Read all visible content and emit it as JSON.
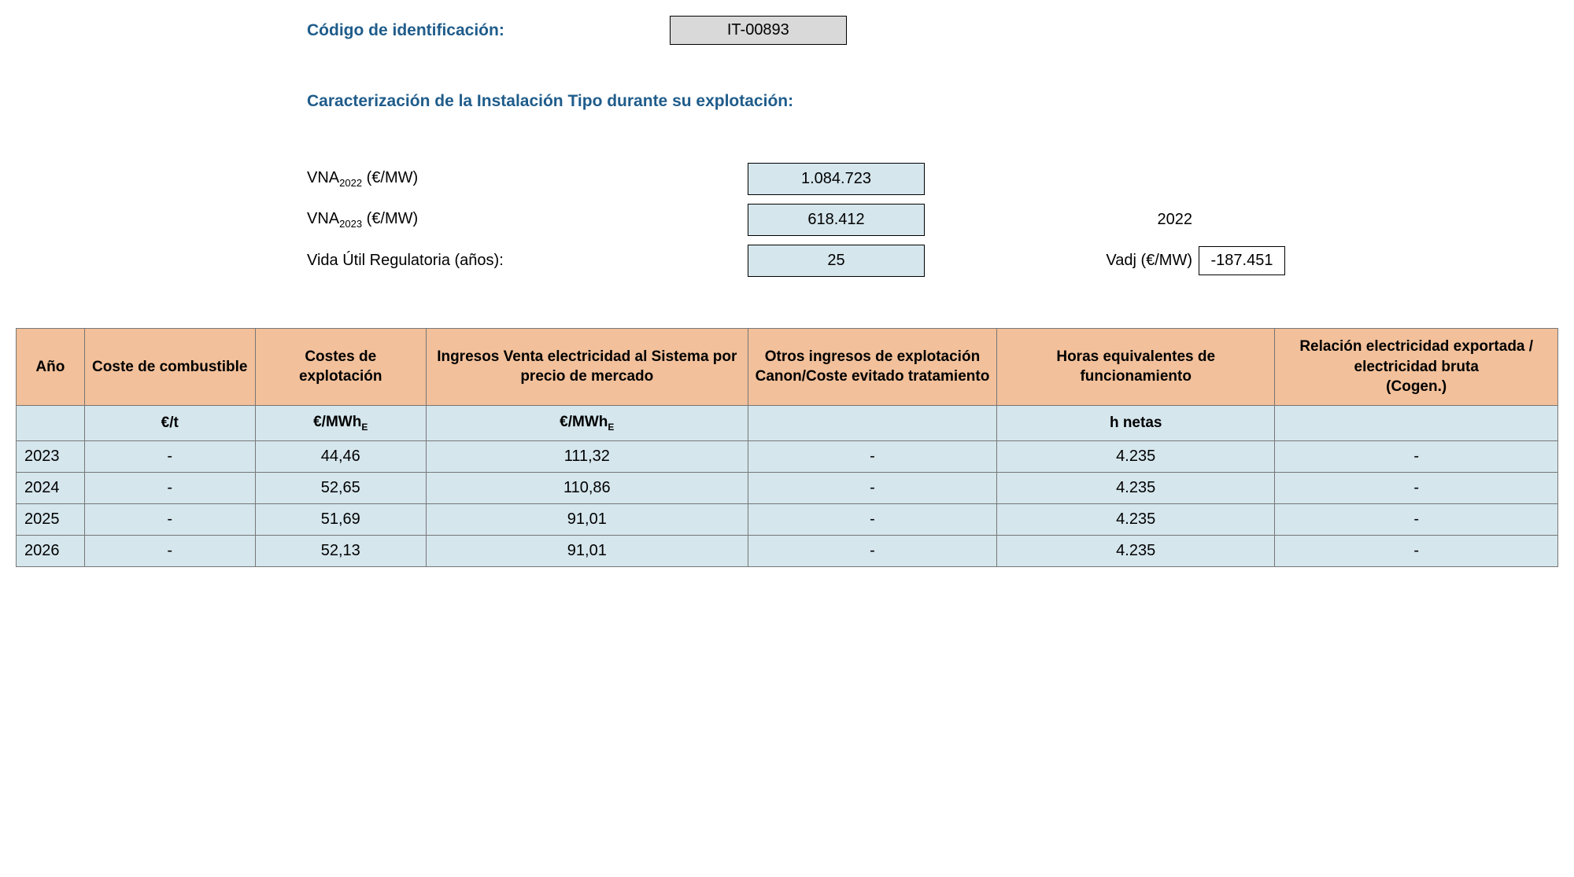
{
  "header": {
    "code_label": "Código de identificación:",
    "code_value": "IT-00893",
    "section_title": "Caracterización de la Instalación Tipo durante su explotación:"
  },
  "params": {
    "vna2022_label_pre": "VNA",
    "vna2022_label_sub": "2022",
    "vna2022_label_post": " (€/MW)",
    "vna2022_value": "1.084.723",
    "vna2023_label_pre": "VNA",
    "vna2023_label_sub": "2023",
    "vna2023_label_post": " (€/MW)",
    "vna2023_value": "618.412",
    "vida_label": "Vida Útil Regulatoria (años):",
    "vida_value": "25",
    "year_side": "2022",
    "vadj_label": "Vadj (€/MW)",
    "vadj_value": "-187.451"
  },
  "table": {
    "headers": {
      "ano": "Año",
      "combustible": "Coste de combustible",
      "explotacion": "Costes de explotación",
      "ingresos": "Ingresos Venta electricidad al Sistema por precio de mercado",
      "otros": "Otros ingresos de explotación Canon/Coste evitado tratamiento",
      "horas": "Horas equivalentes de funcionamiento",
      "relacion": "Relación electricidad exportada / electricidad bruta\n(Cogen.)"
    },
    "units": {
      "ano": "",
      "combustible": "€/t",
      "explotacion_pre": "€/MWh",
      "explotacion_sub": "E",
      "ingresos_pre": "€/MWh",
      "ingresos_sub": "E",
      "otros": "",
      "horas": "h netas",
      "relacion": ""
    },
    "rows": [
      {
        "ano": "2023",
        "combustible": "-",
        "explotacion": "44,46",
        "ingresos": "111,32",
        "otros": "-",
        "horas": "4.235",
        "relacion": "-"
      },
      {
        "ano": "2024",
        "combustible": "-",
        "explotacion": "52,65",
        "ingresos": "110,86",
        "otros": "-",
        "horas": "4.235",
        "relacion": "-"
      },
      {
        "ano": "2025",
        "combustible": "-",
        "explotacion": "51,69",
        "ingresos": "91,01",
        "otros": "-",
        "horas": "4.235",
        "relacion": "-"
      },
      {
        "ano": "2026",
        "combustible": "-",
        "explotacion": "52,13",
        "ingresos": "91,01",
        "otros": "-",
        "horas": "4.235",
        "relacion": "-"
      }
    ]
  },
  "colors": {
    "header_bg": "#f2c09a",
    "cell_bg": "#d5e6ed",
    "code_bg": "#d9d9d9",
    "title_color": "#1f5c8b"
  }
}
